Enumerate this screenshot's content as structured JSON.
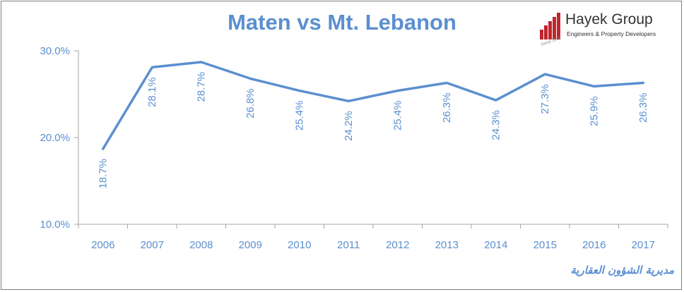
{
  "chart_data": {
    "type": "line",
    "title": "Maten vs Mt. Lebanon",
    "xlabel": "",
    "ylabel": "",
    "ylim": [
      10,
      30
    ],
    "y_ticks": [
      "10.0%",
      "20.0%",
      "30.0%"
    ],
    "y_tick_values": [
      10,
      20,
      30
    ],
    "categories": [
      "2006",
      "2007",
      "2008",
      "2009",
      "2010",
      "2011",
      "2012",
      "2013",
      "2014",
      "2015",
      "2016",
      "2017"
    ],
    "series": [
      {
        "values": [
          18.7,
          28.1,
          28.7,
          26.8,
          25.4,
          24.2,
          25.4,
          26.3,
          24.3,
          27.3,
          25.9,
          26.3
        ],
        "labels": [
          "18.7%",
          "28.1%",
          "28.7%",
          "26.8%",
          "25.4%",
          "24.2%",
          "25.4%",
          "26.3%",
          "24.3%",
          "27.3%",
          "25.9%",
          "26.3%"
        ],
        "color": "#5b8fd0"
      }
    ],
    "grid": false,
    "legend": "none"
  },
  "logo": {
    "name": "Hayek Group",
    "tagline": "Engineers & Property Developers",
    "since": "Since 1961",
    "bar_color": "#c0262d"
  },
  "source_text": "مديرية الشؤون العقارية",
  "colors": {
    "accent": "#5b8fd0",
    "axis": "#a6a6a6",
    "tick_text": "#5b8fd0"
  }
}
